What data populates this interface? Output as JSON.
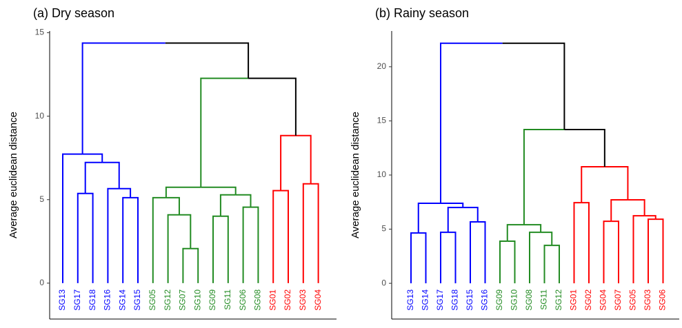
{
  "chart_data": [
    {
      "type": "dendrogram",
      "title": "(a) Dry season",
      "y_label": "Average euclidean distance",
      "ylim": [
        -2.15,
        15.1
      ],
      "yticks": [
        0,
        5,
        10,
        15
      ],
      "tree": {
        "height": 14.38,
        "color": "#000000",
        "children": [
          {
            "height": 7.73,
            "color": "#0000ff",
            "children": [
              "SG13",
              {
                "height": 7.23,
                "color": "#0000ff",
                "children": [
                  {
                    "height": 5.37,
                    "color": "#0000ff",
                    "children": [
                      "SG17",
                      "SG18"
                    ]
                  },
                  {
                    "height": 5.66,
                    "color": "#0000ff",
                    "children": [
                      "SG16",
                      {
                        "height": 5.12,
                        "color": "#0000ff",
                        "children": [
                          "SG14",
                          "SG15"
                        ]
                      }
                    ]
                  }
                ]
              }
            ]
          },
          {
            "height": 12.27,
            "color": "#000000",
            "children": [
              {
                "height": 5.74,
                "color": "#228b22",
                "children": [
                  {
                    "height": 5.12,
                    "color": "#228b22",
                    "children": [
                      "SG05",
                      {
                        "height": 4.09,
                        "color": "#228b22",
                        "children": [
                          "SG12",
                          {
                            "height": 2.07,
                            "color": "#228b22",
                            "children": [
                              "SG07",
                              "SG10"
                            ]
                          }
                        ]
                      }
                    ]
                  },
                  {
                    "height": 5.29,
                    "color": "#228b22",
                    "children": [
                      {
                        "height": 4.01,
                        "color": "#228b22",
                        "children": [
                          "SG09",
                          "SG11"
                        ]
                      },
                      {
                        "height": 4.55,
                        "color": "#228b22",
                        "children": [
                          "SG06",
                          "SG08"
                        ]
                      }
                    ]
                  }
                ]
              },
              {
                "height": 8.84,
                "color": "#ff0000",
                "stem_color": "#000000",
                "children": [
                  {
                    "height": 5.54,
                    "color": "#ff0000",
                    "children": [
                      "SG01",
                      "SG02"
                    ]
                  },
                  {
                    "height": 5.95,
                    "color": "#ff0000",
                    "children": [
                      "SG03",
                      "SG04"
                    ]
                  }
                ]
              }
            ]
          }
        ]
      }
    },
    {
      "type": "dendrogram",
      "title": "(b) Rainy season",
      "y_label": "Average euclidean distance",
      "ylim": [
        -3.3,
        23.3
      ],
      "yticks": [
        0,
        5,
        10,
        15,
        20
      ],
      "tree": {
        "height": 22.17,
        "color": "#000000",
        "children": [
          {
            "height": 7.39,
            "color": "#0000ff",
            "children": [
              {
                "height": 4.65,
                "color": "#0000ff",
                "children": [
                  "SG13",
                  "SG14"
                ]
              },
              {
                "height": 7.0,
                "color": "#0000ff",
                "children": [
                  {
                    "height": 4.71,
                    "color": "#0000ff",
                    "children": [
                      "SG17",
                      "SG18"
                    ]
                  },
                  {
                    "height": 5.67,
                    "color": "#0000ff",
                    "children": [
                      "SG15",
                      "SG16"
                    ]
                  }
                ]
              }
            ]
          },
          {
            "height": 14.2,
            "color": "#000000",
            "children": [
              {
                "height": 5.41,
                "color": "#228b22",
                "children": [
                  {
                    "height": 3.89,
                    "color": "#228b22",
                    "children": [
                      "SG09",
                      "SG10"
                    ]
                  },
                  {
                    "height": 4.71,
                    "color": "#228b22",
                    "children": [
                      "SG08",
                      {
                        "height": 3.5,
                        "color": "#228b22",
                        "children": [
                          "SG11",
                          "SG12"
                        ]
                      }
                    ]
                  }
                ]
              },
              {
                "height": 10.76,
                "color": "#ff0000",
                "stem_color": "#000000",
                "children": [
                  {
                    "height": 7.45,
                    "color": "#ff0000",
                    "children": [
                      "SG01",
                      "SG02"
                    ]
                  },
                  {
                    "height": 7.71,
                    "color": "#ff0000",
                    "children": [
                      {
                        "height": 5.73,
                        "color": "#ff0000",
                        "children": [
                          "SG04",
                          "SG07"
                        ]
                      },
                      {
                        "height": 6.24,
                        "color": "#ff0000",
                        "children": [
                          "SG05",
                          {
                            "height": 5.92,
                            "color": "#ff0000",
                            "children": [
                              "SG03",
                              "SG06"
                            ]
                          }
                        ]
                      }
                    ]
                  }
                ]
              }
            ]
          }
        ]
      }
    }
  ]
}
